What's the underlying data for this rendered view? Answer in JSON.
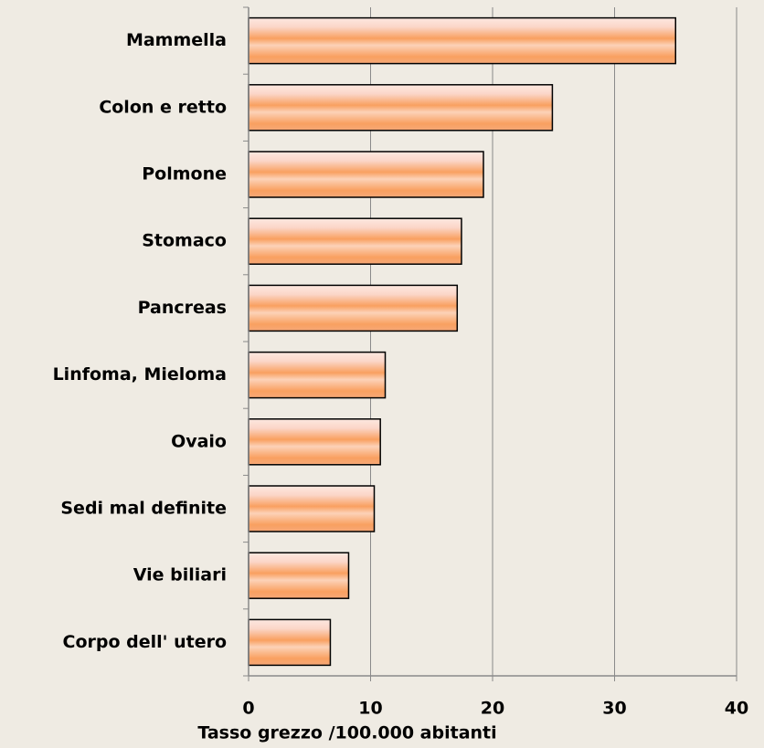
{
  "chart_data": {
    "type": "bar",
    "orientation": "horizontal",
    "x_label": "Tasso grezzo /100.000 abitanti",
    "categories": [
      "Mammella",
      "Colon e retto",
      "Polmone",
      "Stomaco",
      "Pancreas",
      "Linfoma, Mieloma",
      "Ovaio",
      "Sedi mal definite",
      "Vie biliari",
      "Corpo dell' utero"
    ],
    "values": [
      35.0,
      24.9,
      19.25,
      17.45,
      17.1,
      11.2,
      10.8,
      10.3,
      8.2,
      6.7
    ],
    "color": "#f9a060",
    "xlim": [
      0,
      40
    ],
    "xticks": [
      0,
      10,
      20,
      30,
      40
    ],
    "grid": true
  }
}
